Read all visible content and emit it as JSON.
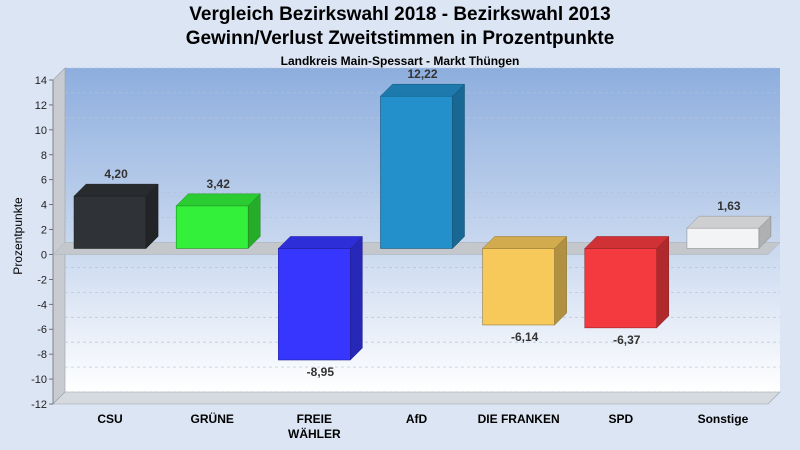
{
  "chart_data": {
    "type": "bar",
    "title": "Vergleich Bezirkswahl 2018 - Bezirkswahl 2013",
    "subtitle": "Gewinn/Verlust Zweitstimmen in Prozentpunkte",
    "caption": "Landkreis Main-Spessart - Markt Thüngen",
    "xlabel": "",
    "ylabel": "Prozentpunkte",
    "ylim": [
      -12,
      14
    ],
    "yticks": [
      -12,
      -10,
      -8,
      -6,
      -4,
      -2,
      0,
      2,
      4,
      6,
      8,
      10,
      12,
      14
    ],
    "categories": [
      {
        "lines": [
          "CSU"
        ]
      },
      {
        "lines": [
          "GRÜNE"
        ]
      },
      {
        "lines": [
          "FREIE",
          "WÄHLER"
        ]
      },
      {
        "lines": [
          "AfD"
        ]
      },
      {
        "lines": [
          "DIE FRANKEN"
        ]
      },
      {
        "lines": [
          "SPD"
        ]
      },
      {
        "lines": [
          "Sonstige"
        ]
      }
    ],
    "values": [
      4.2,
      3.42,
      -8.95,
      12.22,
      -6.14,
      -6.37,
      1.63
    ],
    "labels": [
      "4,20",
      "3,42",
      "-8,95",
      "12,22",
      "-6,14",
      "-6,37",
      "1,63"
    ],
    "colors": [
      "#2f3236",
      "#33f03a",
      "#3636ff",
      "#2390cc",
      "#f6c95a",
      "#f43a3e",
      "#f2f4f6"
    ]
  }
}
